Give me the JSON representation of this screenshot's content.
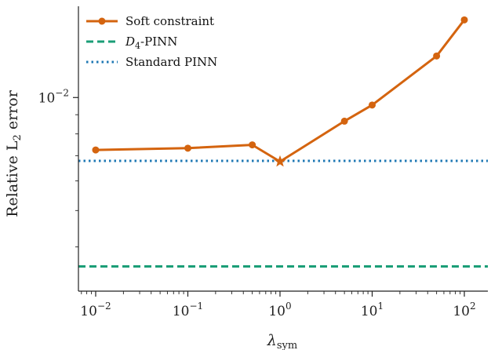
{
  "chart_data": {
    "type": "line",
    "title": "",
    "xlabel": "λ",
    "xlabel_sub": "sym",
    "ylabel": "Relative L",
    "ylabel_sub": "2",
    "ylabel_suffix": "error",
    "xscale": "log",
    "yscale": "log",
    "xlim": [
      0.0065,
      180
    ],
    "ylim": [
      0.00305,
      0.0175
    ],
    "xticks": [
      {
        "value": 0.01,
        "base": "10",
        "exp": "−2"
      },
      {
        "value": 0.1,
        "base": "10",
        "exp": "−1"
      },
      {
        "value": 1,
        "base": "10",
        "exp": "0"
      },
      {
        "value": 10,
        "base": "10",
        "exp": "1"
      },
      {
        "value": 100,
        "base": "10",
        "exp": "2"
      }
    ],
    "yticks": [
      {
        "value": 0.01,
        "base": "10",
        "exp": "−2"
      }
    ],
    "legend_position": "top-left",
    "grid": false,
    "series": [
      {
        "name": "Soft constraint",
        "style": "solid-markers",
        "color": "#d4640f",
        "x": [
          0.01,
          0.1,
          0.5,
          1,
          5,
          10,
          50,
          100
        ],
        "y": [
          0.00725,
          0.00733,
          0.00748,
          0.00675,
          0.00865,
          0.00955,
          0.0129,
          0.0161
        ],
        "highlight_index": 3
      },
      {
        "name": "D4-PINN",
        "name_main": "D",
        "name_sub": "4",
        "name_rest": "-PINN",
        "style": "dashed",
        "color": "#1b9e77",
        "y_const": 0.00355
      },
      {
        "name": "Standard PINN",
        "style": "dotted",
        "color": "#1f78b4",
        "y_const": 0.00678
      }
    ]
  }
}
